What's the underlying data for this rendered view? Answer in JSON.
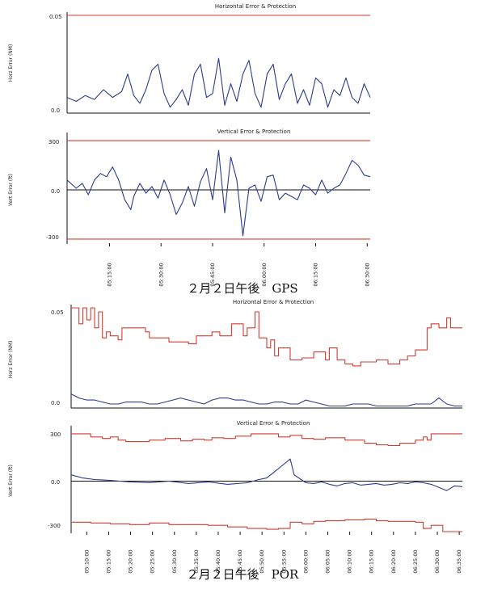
{
  "colors": {
    "error": "#2b3a8c",
    "protection": "#d63b2e",
    "axis": "#111111",
    "zero": "#111111"
  },
  "chart_data": [
    {
      "id": "gps-horizontal",
      "type": "line",
      "title": "Horizontal Error & Protection",
      "ylabel": "Horz Error (NM)",
      "ylim": [
        0,
        0.05
      ],
      "yticks": [
        "0.05",
        "0.0"
      ],
      "ytick_values": [
        0.05,
        0
      ],
      "xlim": [
        0,
        100
      ],
      "x_ticks": [],
      "x_tick_values": [],
      "series": [
        {
          "role": "error",
          "x": [
            0,
            3,
            6,
            9,
            12,
            15,
            18,
            20,
            22,
            24,
            26,
            28,
            30,
            32,
            34,
            36,
            38,
            40,
            42,
            44,
            46,
            48,
            50,
            52,
            54,
            56,
            58,
            60,
            62,
            64,
            66,
            68,
            70,
            72,
            74,
            76,
            78,
            80,
            82,
            84,
            86,
            88,
            90,
            92,
            94,
            96,
            98,
            100
          ],
          "y": [
            0.008,
            0.006,
            0.009,
            0.007,
            0.012,
            0.008,
            0.011,
            0.02,
            0.009,
            0.005,
            0.012,
            0.022,
            0.025,
            0.01,
            0.003,
            0.007,
            0.012,
            0.004,
            0.02,
            0.025,
            0.008,
            0.01,
            0.028,
            0.004,
            0.015,
            0.006,
            0.02,
            0.027,
            0.01,
            0.003,
            0.02,
            0.025,
            0.007,
            0.015,
            0.02,
            0.005,
            0.012,
            0.004,
            0.018,
            0.015,
            0.003,
            0.012,
            0.009,
            0.018,
            0.008,
            0.005,
            0.015,
            0.008
          ]
        },
        {
          "role": "protection",
          "x": [
            0,
            100
          ],
          "y": [
            0.05,
            0.05
          ]
        }
      ]
    },
    {
      "id": "gps-vertical",
      "type": "line",
      "title": "Vertical Error & Protection",
      "ylabel": "Vert Error (ft)",
      "ylim": [
        -330,
        330
      ],
      "yticks": [
        "300",
        "0.0",
        "-300"
      ],
      "ytick_values": [
        300,
        0,
        -300
      ],
      "xlim": [
        0,
        100
      ],
      "x_ticks": [
        "05:15:00",
        "05:30:00",
        "05:45:00",
        "06:00:00",
        "06:15:00",
        "06:30:00"
      ],
      "x_tick_values": [
        14,
        31,
        48,
        65,
        82,
        99
      ],
      "series": [
        {
          "role": "error",
          "x": [
            0,
            3,
            5,
            7,
            9,
            11,
            13,
            15,
            17,
            19,
            21,
            22,
            24,
            26,
            28,
            30,
            32,
            34,
            36,
            38,
            40,
            42,
            44,
            46,
            48,
            50,
            52,
            54,
            56,
            58,
            60,
            62,
            64,
            66,
            68,
            70,
            72,
            74,
            76,
            78,
            80,
            82,
            84,
            86,
            88,
            90,
            92,
            94,
            96,
            98,
            100
          ],
          "y": [
            60,
            10,
            40,
            -30,
            60,
            100,
            80,
            140,
            60,
            -60,
            -120,
            -40,
            40,
            -20,
            20,
            -50,
            60,
            -30,
            -150,
            -80,
            20,
            -100,
            50,
            130,
            -60,
            240,
            -140,
            200,
            60,
            -280,
            10,
            30,
            -70,
            80,
            90,
            -60,
            -20,
            -40,
            -60,
            30,
            10,
            -30,
            60,
            -20,
            10,
            30,
            100,
            180,
            150,
            90,
            80
          ]
        },
        {
          "role": "protection",
          "x": [
            0,
            100
          ],
          "y": [
            300,
            300
          ]
        },
        {
          "role": "protection",
          "x": [
            0,
            100
          ],
          "y": [
            -300,
            -300
          ]
        }
      ]
    },
    {
      "id": "por-horizontal",
      "type": "line",
      "title": "Horizontal Error & Protection",
      "ylabel": "Horz Error (NM)",
      "ylim": [
        0,
        0.05
      ],
      "yticks": [
        "0.05",
        "0.0"
      ],
      "ytick_values": [
        0.05,
        0
      ],
      "xlim": [
        0,
        100
      ],
      "x_ticks": [],
      "x_tick_values": [],
      "series": [
        {
          "role": "protection",
          "x": [
            0,
            2,
            3,
            4,
            5,
            6,
            7,
            8,
            9,
            10,
            12,
            13,
            19,
            20,
            25,
            30,
            32,
            36,
            38,
            41,
            44,
            45,
            47,
            48,
            50,
            51,
            52,
            53,
            56,
            59,
            62,
            65,
            66,
            68,
            70,
            72,
            74,
            78,
            81,
            84,
            86,
            88,
            91,
            92,
            94,
            96,
            97,
            98,
            100
          ],
          "y": [
            0.05,
            0.042,
            0.05,
            0.044,
            0.05,
            0.04,
            0.048,
            0.035,
            0.038,
            0.036,
            0.034,
            0.04,
            0.038,
            0.035,
            0.033,
            0.032,
            0.036,
            0.038,
            0.036,
            0.042,
            0.036,
            0.04,
            0.048,
            0.035,
            0.03,
            0.034,
            0.026,
            0.03,
            0.024,
            0.025,
            0.028,
            0.024,
            0.03,
            0.024,
            0.022,
            0.021,
            0.023,
            0.024,
            0.022,
            0.024,
            0.026,
            0.029,
            0.04,
            0.042,
            0.04,
            0.045,
            0.04,
            0.04,
            0.04
          ]
        },
        {
          "role": "error",
          "x": [
            0,
            2,
            4,
            6,
            8,
            10,
            12,
            14,
            16,
            18,
            20,
            22,
            24,
            26,
            28,
            30,
            32,
            34,
            36,
            38,
            40,
            42,
            44,
            46,
            48,
            50,
            52,
            54,
            56,
            58,
            60,
            62,
            64,
            66,
            68,
            70,
            72,
            74,
            76,
            78,
            80,
            82,
            84,
            86,
            88,
            90,
            92,
            94,
            96,
            98,
            100
          ],
          "y": [
            0.007,
            0.005,
            0.004,
            0.004,
            0.003,
            0.002,
            0.002,
            0.003,
            0.003,
            0.003,
            0.002,
            0.002,
            0.003,
            0.004,
            0.005,
            0.004,
            0.003,
            0.002,
            0.004,
            0.005,
            0.005,
            0.004,
            0.004,
            0.003,
            0.002,
            0.002,
            0.003,
            0.003,
            0.002,
            0.002,
            0.004,
            0.003,
            0.002,
            0.001,
            0.001,
            0.001,
            0.002,
            0.002,
            0.002,
            0.001,
            0.001,
            0.001,
            0.001,
            0.001,
            0.002,
            0.002,
            0.002,
            0.005,
            0.002,
            0.001,
            0.001
          ]
        }
      ]
    },
    {
      "id": "por-vertical",
      "type": "line",
      "title": "Vertical Error & Protection",
      "ylabel": "Vert Error (ft)",
      "ylim": [
        -330,
        330
      ],
      "yticks": [
        "300",
        "0.0",
        "-300"
      ],
      "ytick_values": [
        300,
        0,
        -300
      ],
      "xlim": [
        0,
        100
      ],
      "x_ticks": [
        "05:10:00",
        "05:15:00",
        "05:20:00",
        "05:25:00",
        "05:30:00",
        "05:35:00",
        "05:40:00",
        "05:45:00",
        "05:50:00",
        "05:55:00",
        "06:00:00",
        "06:05:00",
        "06:10:00",
        "06:15:00",
        "06:20:00",
        "06:25:00",
        "06:30:00",
        "06:35:00"
      ],
      "x_tick_values": [
        4,
        9.6,
        15.2,
        20.8,
        26.4,
        32,
        37.6,
        43.2,
        48.8,
        54.4,
        60,
        65.6,
        71.2,
        76.8,
        82.4,
        88,
        93.6,
        99.2
      ],
      "series": [
        {
          "role": "protection",
          "x": [
            0,
            5,
            8,
            10,
            12,
            14,
            20,
            24,
            28,
            31,
            34,
            36,
            39,
            42,
            46,
            50,
            53,
            56,
            59,
            62,
            65,
            70,
            75,
            78,
            81,
            84,
            88,
            90,
            91,
            92,
            94,
            96,
            100
          ],
          "y": [
            300,
            280,
            270,
            280,
            260,
            250,
            260,
            270,
            255,
            265,
            260,
            275,
            270,
            285,
            300,
            300,
            280,
            290,
            270,
            265,
            275,
            260,
            240,
            230,
            225,
            240,
            260,
            280,
            260,
            300,
            300,
            300,
            300
          ]
        },
        {
          "role": "protection",
          "x": [
            0,
            5,
            10,
            15,
            20,
            25,
            30,
            35,
            40,
            45,
            50,
            53,
            56,
            59,
            62,
            65,
            70,
            75,
            78,
            81,
            84,
            88,
            90,
            92,
            95,
            100
          ],
          "y": [
            -260,
            -265,
            -270,
            -275,
            -265,
            -275,
            -275,
            -280,
            -290,
            -300,
            -305,
            -300,
            -260,
            -270,
            -255,
            -250,
            -245,
            -240,
            -250,
            -255,
            -255,
            -260,
            -300,
            -280,
            -320,
            -320
          ]
        },
        {
          "role": "error",
          "x": [
            0,
            3,
            6,
            10,
            15,
            20,
            25,
            30,
            35,
            40,
            45,
            48,
            50,
            52,
            54,
            56,
            57,
            60,
            62,
            64,
            66,
            68,
            70,
            72,
            74,
            76,
            78,
            80,
            82,
            84,
            86,
            88,
            90,
            92,
            94,
            96,
            98,
            100
          ],
          "y": [
            40,
            20,
            10,
            5,
            -5,
            -10,
            0,
            -15,
            -5,
            -20,
            -10,
            10,
            20,
            60,
            100,
            140,
            40,
            -10,
            -15,
            -5,
            -20,
            -30,
            -15,
            -10,
            -25,
            -20,
            -15,
            -25,
            -20,
            -10,
            -15,
            -5,
            -10,
            -20,
            -40,
            -60,
            -30,
            -35
          ]
        }
      ]
    }
  ],
  "captions": {
    "gps": "２月２日午後　GPS",
    "por": "２月２日午後　POR"
  }
}
